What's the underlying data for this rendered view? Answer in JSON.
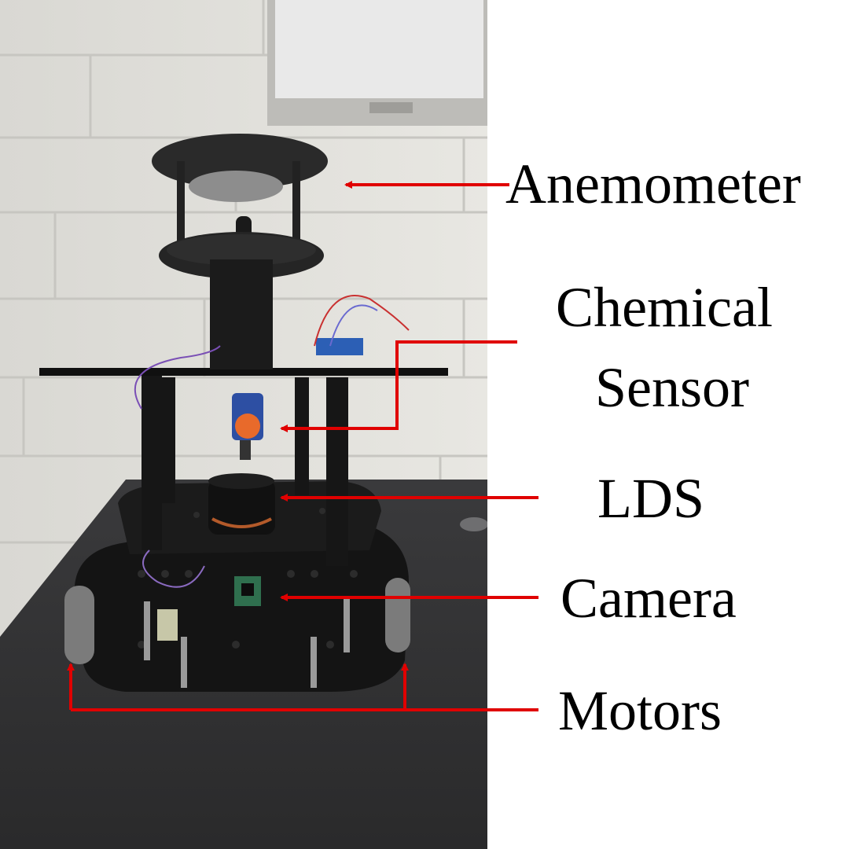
{
  "labels": {
    "anemometer": "Anemometer",
    "chemical_line1": "Chemical",
    "chemical_line2": "Sensor",
    "lds": "LDS",
    "camera": "Camera",
    "motors": "Motors"
  },
  "colors": {
    "arrow": "#e00000",
    "text": "#000000",
    "background": "#ffffff"
  }
}
